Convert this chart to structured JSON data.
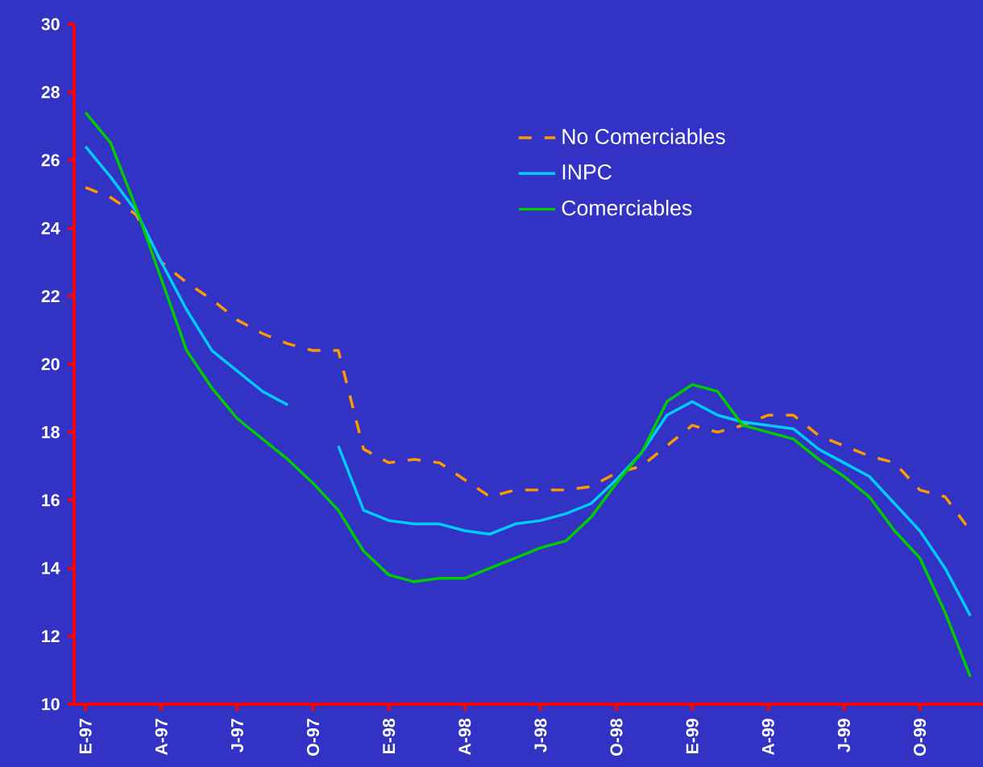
{
  "chart_data": {
    "type": "line",
    "categories": [
      "E-97",
      null,
      null,
      "A-97",
      null,
      null,
      "J-97",
      null,
      null,
      "O-97",
      null,
      null,
      "E-98",
      null,
      null,
      "A-98",
      null,
      null,
      "J-98",
      null,
      null,
      "O-98",
      null,
      null,
      "E-99",
      null,
      null,
      "A-99",
      null,
      null,
      "J-99",
      null,
      null,
      "O-99",
      null,
      null
    ],
    "series": [
      {
        "name": "No Comerciables",
        "color": "#ff9900",
        "line_style": "dashed",
        "values": [
          25.2,
          24.9,
          24.4,
          23.0,
          22.4,
          21.9,
          21.3,
          20.9,
          20.6,
          20.4,
          20.4,
          17.5,
          17.1,
          17.2,
          17.1,
          16.6,
          16.1,
          16.3,
          16.3,
          16.3,
          16.4,
          16.8,
          17.0,
          17.6,
          18.2,
          18.0,
          18.2,
          18.5,
          18.5,
          17.9,
          17.6,
          17.3,
          17.1,
          16.3,
          16.1,
          15.1
        ]
      },
      {
        "name": "INPC",
        "color": "#00ccff",
        "values": [
          26.4,
          25.5,
          24.5,
          23.0,
          21.6,
          20.4,
          19.8,
          19.2,
          18.8,
          null,
          17.6,
          15.7,
          15.4,
          15.3,
          15.3,
          15.1,
          15.0,
          15.3,
          15.4,
          15.6,
          15.9,
          16.6,
          17.4,
          18.5,
          18.9,
          18.5,
          18.3,
          18.2,
          18.1,
          17.5,
          17.1,
          16.7,
          15.9,
          15.1,
          14.0,
          12.6
        ]
      },
      {
        "name": "Comerciables",
        "color": "#00cc00",
        "values": [
          27.4,
          26.5,
          24.6,
          22.5,
          20.4,
          19.3,
          18.4,
          17.8,
          17.2,
          16.5,
          15.7,
          14.5,
          13.8,
          13.6,
          13.7,
          13.7,
          14.0,
          14.3,
          14.6,
          14.8,
          15.5,
          16.5,
          17.4,
          18.9,
          19.4,
          19.2,
          18.2,
          18.0,
          17.8,
          17.2,
          16.7,
          16.1,
          15.1,
          14.3,
          12.7,
          10.8
        ]
      }
    ],
    "ylim": [
      10,
      30
    ],
    "yticks": [
      10,
      12,
      14,
      16,
      18,
      20,
      22,
      24,
      26,
      28,
      30
    ],
    "grid": false,
    "legend": "top right",
    "marker": "none"
  }
}
